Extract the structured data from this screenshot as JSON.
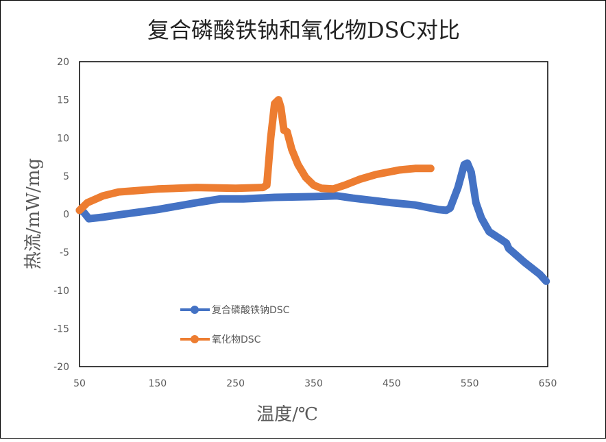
{
  "chart_data": {
    "type": "line",
    "title": "复合磷酸铁钠和氧化物DSC对比",
    "xlabel": "温度/℃",
    "ylabel": "热流/mW/mg",
    "xlim": [
      50,
      650
    ],
    "ylim": [
      -20,
      20
    ],
    "xticks": [
      50,
      150,
      250,
      350,
      450,
      550,
      650
    ],
    "yticks": [
      20,
      15,
      10,
      5,
      0,
      -5,
      -10,
      -15,
      -20
    ],
    "grid": false,
    "legend": "inside-bottom-left",
    "series": [
      {
        "name": "复合磷酸铁钠DSC",
        "color": "#4472C4",
        "points": [
          [
            50,
            0.5
          ],
          [
            55,
            0.3
          ],
          [
            62,
            -0.6
          ],
          [
            80,
            -0.4
          ],
          [
            100,
            -0.1
          ],
          [
            150,
            0.6
          ],
          [
            200,
            1.5
          ],
          [
            230,
            2.0
          ],
          [
            260,
            2.0
          ],
          [
            300,
            2.2
          ],
          [
            350,
            2.3
          ],
          [
            380,
            2.4
          ],
          [
            400,
            2.1
          ],
          [
            450,
            1.5
          ],
          [
            480,
            1.2
          ],
          [
            510,
            0.6
          ],
          [
            520,
            0.5
          ],
          [
            525,
            0.8
          ],
          [
            535,
            3.5
          ],
          [
            543,
            6.5
          ],
          [
            547,
            6.7
          ],
          [
            552,
            5.5
          ],
          [
            558,
            1.5
          ],
          [
            565,
            -0.5
          ],
          [
            575,
            -2.3
          ],
          [
            590,
            -3.3
          ],
          [
            597,
            -3.8
          ],
          [
            600,
            -4.5
          ],
          [
            620,
            -6.3
          ],
          [
            640,
            -7.9
          ],
          [
            648,
            -8.8
          ]
        ]
      },
      {
        "name": "氧化物DSC",
        "color": "#ED7D31",
        "points": [
          [
            50,
            0.5
          ],
          [
            60,
            1.5
          ],
          [
            80,
            2.4
          ],
          [
            100,
            2.9
          ],
          [
            150,
            3.3
          ],
          [
            200,
            3.5
          ],
          [
            250,
            3.4
          ],
          [
            285,
            3.5
          ],
          [
            290,
            3.8
          ],
          [
            295,
            10
          ],
          [
            300,
            14.5
          ],
          [
            305,
            15
          ],
          [
            308,
            14
          ],
          [
            312,
            11
          ],
          [
            316,
            10.8
          ],
          [
            322,
            8.5
          ],
          [
            330,
            6.5
          ],
          [
            340,
            4.8
          ],
          [
            350,
            3.8
          ],
          [
            360,
            3.4
          ],
          [
            375,
            3.3
          ],
          [
            390,
            3.8
          ],
          [
            410,
            4.6
          ],
          [
            430,
            5.2
          ],
          [
            460,
            5.8
          ],
          [
            480,
            6
          ],
          [
            500,
            6
          ]
        ]
      }
    ]
  }
}
